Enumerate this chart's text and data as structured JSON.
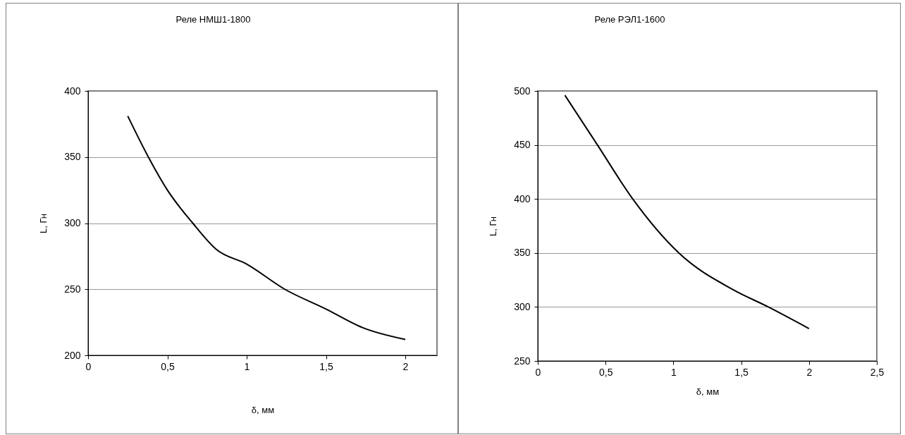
{
  "chart_data": [
    {
      "type": "line",
      "title": "Реле НМШ1-1800",
      "xlabel": "δ, мм",
      "ylabel": "L, Гн",
      "color": "#000000",
      "grid": "y",
      "x": [
        0.25,
        0.38,
        0.5,
        0.66,
        0.81,
        1.0,
        1.24,
        1.5,
        1.73,
        2.0
      ],
      "values": [
        381,
        350,
        325,
        300,
        280,
        269,
        250,
        235,
        221,
        212
      ],
      "xlim": [
        0,
        2.2
      ],
      "xticks": [
        0,
        {
          "value": 0.5,
          "label": "0,5"
        },
        1,
        {
          "value": 1.5,
          "label": "1,5"
        },
        2
      ],
      "ylim": [
        200,
        400
      ],
      "yticks": [
        200,
        250,
        300,
        350,
        400
      ]
    },
    {
      "type": "line",
      "title": "Реле РЭЛ1-1600",
      "xlabel": "δ, мм",
      "ylabel": "L, Гн",
      "color": "#000000",
      "grid": "y",
      "x": [
        0.2,
        0.44,
        0.7,
        1.04,
        1.44,
        1.7,
        2.0
      ],
      "values": [
        496,
        450,
        400,
        350,
        316,
        300,
        280
      ],
      "xlim": [
        0,
        2.5
      ],
      "xticks": [
        0,
        {
          "value": 0.5,
          "label": "0,5"
        },
        1,
        {
          "value": 1.5,
          "label": "1,5"
        },
        2,
        {
          "value": 2.5,
          "label": "2,5"
        }
      ],
      "ylim": [
        250,
        500
      ],
      "yticks": [
        250,
        300,
        350,
        400,
        450,
        500
      ]
    }
  ]
}
